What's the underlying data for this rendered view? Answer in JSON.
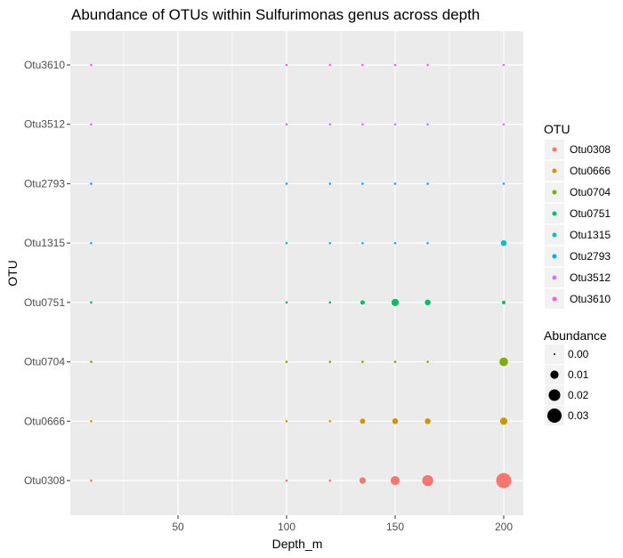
{
  "chart_data": {
    "type": "scatter",
    "title": "Abundance of OTUs within Sulfurimonas genus across depth",
    "xlabel": "Depth_m",
    "ylabel": "OTU",
    "xlim": [
      0,
      207
    ],
    "x_ticks": [
      50,
      100,
      150,
      200
    ],
    "y_categories": [
      "Otu0308",
      "Otu0666",
      "Otu0704",
      "Otu0751",
      "Otu1315",
      "Otu2793",
      "Otu3512",
      "Otu3610"
    ],
    "depths": [
      10,
      100,
      120,
      135,
      150,
      165,
      200
    ],
    "series": [
      {
        "name": "Otu0308",
        "color": "#F8766D",
        "values": [
          0.0005,
          0.0005,
          0.0005,
          0.006,
          0.012,
          0.018,
          0.034
        ]
      },
      {
        "name": "Otu0666",
        "color": "#CD9600",
        "values": [
          0.0005,
          0.0005,
          0.0005,
          0.004,
          0.005,
          0.005,
          0.008
        ]
      },
      {
        "name": "Otu0704",
        "color": "#7CAE00",
        "values": [
          0.0005,
          0.0005,
          0.0005,
          0.0005,
          0.0005,
          0.0005,
          0.011
        ]
      },
      {
        "name": "Otu0751",
        "color": "#00BE67",
        "values": [
          0.0005,
          0.0005,
          0.0005,
          0.003,
          0.008,
          0.005,
          0.002
        ]
      },
      {
        "name": "Otu1315",
        "color": "#00BFC4",
        "values": [
          0.0005,
          0.0005,
          0.0005,
          0.0005,
          0.0005,
          0.0005,
          0.005
        ]
      },
      {
        "name": "Otu2793",
        "color": "#00A9FF",
        "values": [
          0.0005,
          0.0005,
          0.0005,
          0.0005,
          0.0005,
          0.0005,
          0.0005
        ]
      },
      {
        "name": "Otu3512",
        "color": "#C77CFF",
        "values": [
          0.0005,
          0.0005,
          0.0005,
          0.0005,
          0.0005,
          0.0005,
          0.0005
        ]
      },
      {
        "name": "Otu3610",
        "color": "#FF61CC",
        "values": [
          0.0005,
          0.0005,
          0.0005,
          0.0005,
          0.0005,
          0.0005,
          0.0005
        ]
      }
    ],
    "legend_color": {
      "title": "OTU",
      "entries": [
        "Otu0308",
        "Otu0666",
        "Otu0704",
        "Otu0751",
        "Otu1315",
        "Otu2793",
        "Otu3512",
        "Otu3610"
      ]
    },
    "legend_size": {
      "title": "Abundance",
      "entries": [
        {
          "label": "0.00",
          "value": 0.0
        },
        {
          "label": "0.01",
          "value": 0.01
        },
        {
          "label": "0.02",
          "value": 0.02
        },
        {
          "label": "0.03",
          "value": 0.03
        }
      ]
    },
    "grid": true,
    "legend_position": "right",
    "background_color": "#EBEBEB"
  }
}
